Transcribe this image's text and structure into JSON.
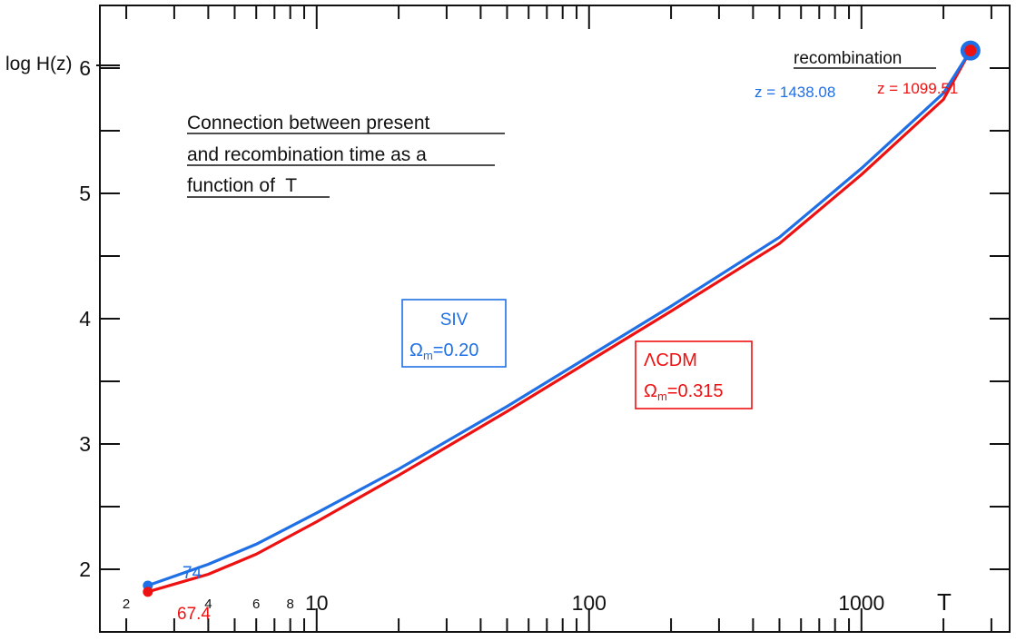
{
  "chart_data": {
    "type": "line",
    "title": "Connection between present and recombination time as a function of T",
    "title_lines": [
      "Connection between present",
      "and recombination time as a",
      "function of  T"
    ],
    "xlabel": "T",
    "ylabel": "log H(z)",
    "xscale": "log",
    "xlim": [
      1.6,
      3500
    ],
    "ylim": [
      1.5,
      6.5
    ],
    "x_major_ticks": [
      10,
      100,
      1000
    ],
    "x_major_labels": [
      "10",
      "100",
      "1000"
    ],
    "x_minor_labels": [
      {
        "value": 2,
        "label": "2"
      },
      {
        "value": 4,
        "label": "4"
      },
      {
        "value": 6,
        "label": "6"
      },
      {
        "value": 8,
        "label": "8"
      }
    ],
    "y_ticks": [
      2,
      3,
      4,
      5,
      6
    ],
    "y_tick_labels": [
      "2",
      "3",
      "4",
      "5",
      "6"
    ],
    "series": [
      {
        "name": "SIV",
        "color": "#1f6fe6",
        "legend_line1": "SIV",
        "legend_symbol": "Ω",
        "legend_sub": "m",
        "legend_value": "=0.20",
        "points": [
          [
            2.4,
            1.87
          ],
          [
            4,
            2.04
          ],
          [
            6,
            2.2
          ],
          [
            10,
            2.45
          ],
          [
            20,
            2.8
          ],
          [
            50,
            3.3
          ],
          [
            100,
            3.7
          ],
          [
            200,
            4.1
          ],
          [
            500,
            4.65
          ],
          [
            1000,
            5.2
          ],
          [
            2000,
            5.8
          ],
          [
            2513,
            6.14
          ]
        ],
        "start_label": "74",
        "end_label": "z = 1438.08"
      },
      {
        "name": "ΛCDM",
        "color": "#ee1111",
        "legend_line1": "ΛCDM",
        "legend_symbol": "Ω",
        "legend_sub": "m",
        "legend_value": "=0.315",
        "points": [
          [
            2.4,
            1.82
          ],
          [
            4,
            1.96
          ],
          [
            6,
            2.12
          ],
          [
            10,
            2.38
          ],
          [
            20,
            2.75
          ],
          [
            50,
            3.26
          ],
          [
            100,
            3.66
          ],
          [
            200,
            4.06
          ],
          [
            500,
            4.6
          ],
          [
            1000,
            5.15
          ],
          [
            2000,
            5.75
          ],
          [
            2513,
            6.14
          ]
        ],
        "start_label": "67.4",
        "end_label": "z = 1099.51"
      }
    ],
    "annotation": "recombination"
  }
}
